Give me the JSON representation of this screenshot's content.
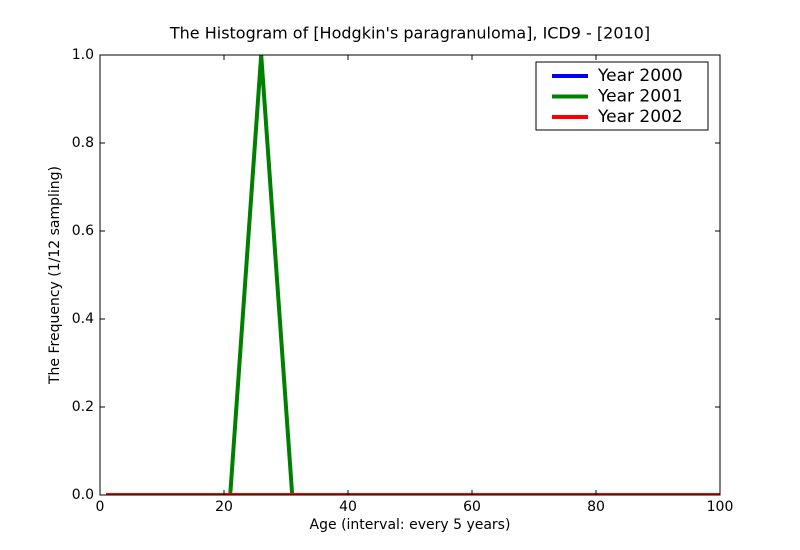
{
  "chart_data": {
    "type": "line",
    "title": "The Histogram of [Hodgkin's paragranuloma], ICD9 - [2010]",
    "xlabel": "Age (interval: every 5 years)",
    "ylabel": "The Frequency (1/12 sampling)",
    "x": [
      1,
      6,
      11,
      16,
      21,
      26,
      31,
      36,
      41,
      46,
      51,
      56,
      61,
      66,
      71,
      76,
      81,
      86,
      91,
      96,
      101
    ],
    "series": [
      {
        "name": "Year 2000",
        "color": "#0000ff",
        "values": [
          0,
          0,
          0,
          0,
          0,
          0,
          0,
          0,
          0,
          0,
          0,
          0,
          0,
          0,
          0,
          0,
          0,
          0,
          0,
          0,
          0
        ]
      },
      {
        "name": "Year 2001",
        "color": "#008000",
        "values": [
          0,
          0,
          0,
          0,
          0,
          1,
          0,
          0,
          0,
          0,
          0,
          0,
          0,
          0,
          0,
          0,
          0,
          0,
          0,
          0,
          0
        ]
      },
      {
        "name": "Year 2002",
        "color": "#ff0000",
        "values": [
          0,
          0,
          0,
          0,
          0,
          0,
          0,
          0,
          0,
          0,
          0,
          0,
          0,
          0,
          0,
          0,
          0,
          0,
          0,
          0,
          0
        ]
      }
    ],
    "xlim": [
      0,
      100
    ],
    "xticks": [
      0,
      20,
      40,
      60,
      80,
      100
    ],
    "ylim": [
      0,
      1
    ],
    "yticks": [
      {
        "value": 0,
        "label": "0.0"
      },
      {
        "value": 0.2,
        "label": "0.2"
      },
      {
        "value": 0.4,
        "label": "0.4"
      },
      {
        "value": 0.6,
        "label": "0.6"
      },
      {
        "value": 0.8,
        "label": "0.8"
      },
      {
        "value": 1,
        "label": "1.0"
      }
    ],
    "legend": "upper right"
  }
}
